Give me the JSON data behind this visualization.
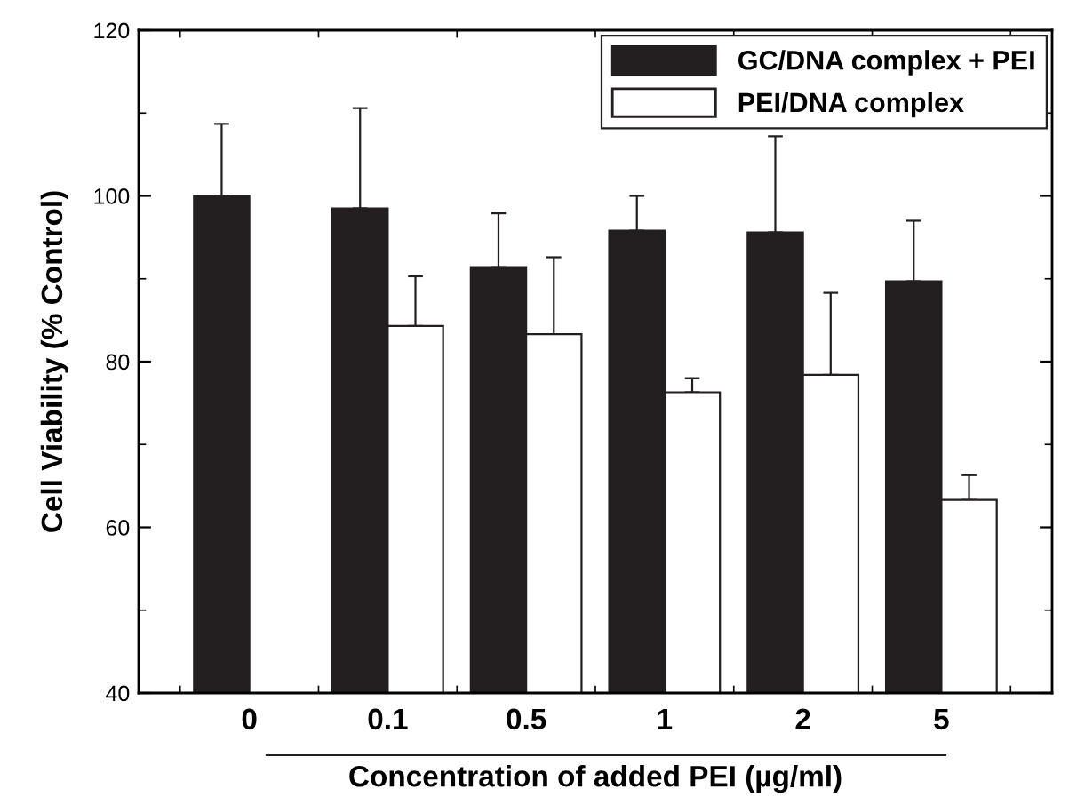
{
  "chart_data": {
    "type": "bar",
    "xlabel": "Concentration of added PEI (µg/ml)",
    "ylabel": "Cell Viability (% Control)",
    "categories": [
      "0",
      "0.1",
      "0.5",
      "1",
      "2",
      "5"
    ],
    "series": [
      {
        "name": "GC/DNA complex + PEI",
        "color": "#231f20",
        "values": [
          100,
          98.5,
          91.4,
          95.8,
          95.6,
          89.7
        ],
        "errors": [
          [
            100,
            108.7
          ],
          [
            98.5,
            110.6
          ],
          [
            91.4,
            97.9
          ],
          [
            95.8,
            100.0
          ],
          [
            95.6,
            107.2
          ],
          [
            89.7,
            97.0
          ]
        ]
      },
      {
        "name": "PEI/DNA complex",
        "color": "#ffffff",
        "values": [
          null,
          84.3,
          83.3,
          76.3,
          78.4,
          63.3
        ],
        "errors": [
          null,
          [
            84.3,
            90.3
          ],
          [
            83.3,
            92.6
          ],
          [
            76.3,
            78.0
          ],
          [
            78.4,
            88.3
          ],
          [
            63.3,
            66.3
          ]
        ]
      }
    ],
    "ylim": [
      40,
      120
    ],
    "yticks": [
      40,
      {
        "value": 50,
        "label": null
      },
      60,
      {
        "value": 70,
        "label": null
      },
      80,
      {
        "value": 90,
        "label": null
      },
      100,
      {
        "value": 110,
        "label": null
      },
      120
    ],
    "legend": "top right",
    "grid": false
  }
}
